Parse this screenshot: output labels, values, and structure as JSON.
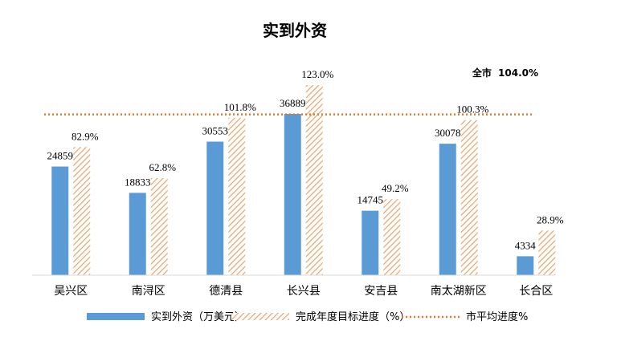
{
  "chart_data": {
    "type": "bar",
    "title": "实到外资",
    "categories": [
      "吴兴区",
      "南浔区",
      "德清县",
      "长兴县",
      "安吉县",
      "南太湖新区",
      "长合区"
    ],
    "series": [
      {
        "name": "实到外资（万美元）",
        "values": [
          24859,
          18833,
          30553,
          36889,
          14745,
          30078,
          4334
        ],
        "labels": [
          "24859",
          "18833",
          "30553",
          "36889",
          "14745",
          "30078",
          "4334"
        ],
        "color": "#5b9bd5"
      },
      {
        "name": "完成年度目标进度（%）",
        "values": [
          82.9,
          62.8,
          101.8,
          123.0,
          49.2,
          100.3,
          28.9
        ],
        "labels": [
          "82.9%",
          "62.8%",
          "101.8%",
          "123.0%",
          "49.2%",
          "100.3%",
          "28.9%"
        ],
        "color": "#e8a36a",
        "pattern": "diagonal-hatch"
      }
    ],
    "reference_line": {
      "name": "市平均进度%",
      "value": 104.0,
      "color": "#e0782e",
      "style": "dotted"
    },
    "annotation": {
      "label": "全市",
      "value": "104.0%"
    },
    "grid": false,
    "legend_position": "bottom"
  }
}
